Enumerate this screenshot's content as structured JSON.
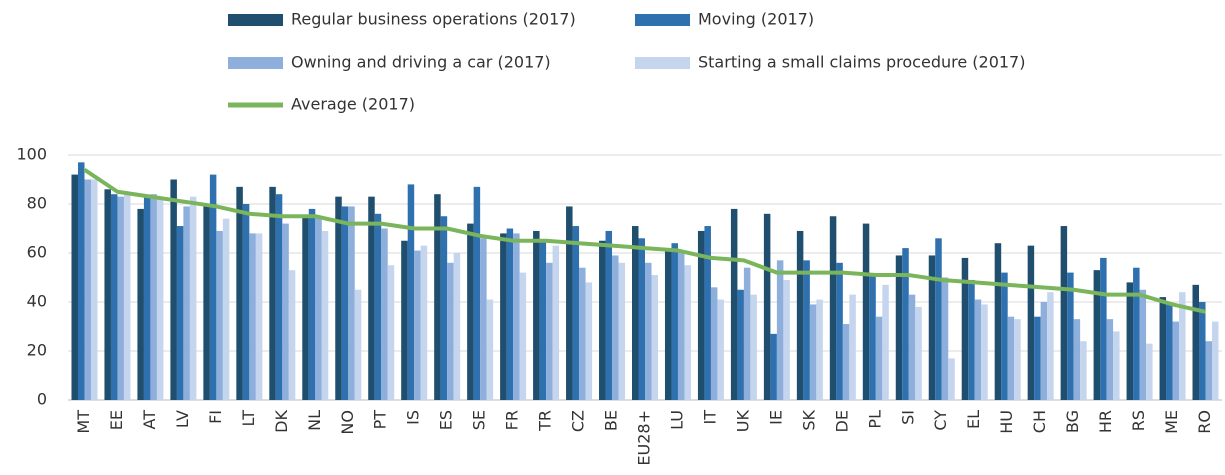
{
  "chart_data": {
    "type": "bar",
    "categories": [
      "MT",
      "EE",
      "AT",
      "LV",
      "FI",
      "LT",
      "DK",
      "NL",
      "NO",
      "PT",
      "IS",
      "ES",
      "SE",
      "FR",
      "TR",
      "CZ",
      "BE",
      "EU28+",
      "LU",
      "IT",
      "UK",
      "IE",
      "SK",
      "DE",
      "PL",
      "SI",
      "CY",
      "EL",
      "HU",
      "CH",
      "BG",
      "HR",
      "RS",
      "ME",
      "RO"
    ],
    "series": [
      {
        "name": "Regular business operations (2017)",
        "color": "#1f4e6e",
        "values": [
          92,
          86,
          78,
          90,
          80,
          87,
          87,
          75,
          83,
          83,
          65,
          84,
          72,
          68,
          69,
          79,
          65,
          71,
          62,
          69,
          78,
          76,
          69,
          75,
          72,
          59,
          59,
          58,
          64,
          63,
          71,
          53,
          48,
          42,
          47
        ]
      },
      {
        "name": "Moving (2017)",
        "color": "#2f70ae",
        "values": [
          97,
          84,
          83,
          71,
          92,
          80,
          84,
          78,
          79,
          76,
          88,
          75,
          87,
          70,
          65,
          71,
          69,
          66,
          64,
          71,
          45,
          27,
          57,
          56,
          51,
          62,
          66,
          49,
          52,
          34,
          52,
          58,
          54,
          39,
          40
        ]
      },
      {
        "name": "Owning and driving a car (2017)",
        "color": "#8eafdb",
        "values": [
          90,
          83,
          84,
          79,
          69,
          68,
          72,
          75,
          79,
          70,
          61,
          56,
          66,
          68,
          56,
          54,
          59,
          56,
          61,
          46,
          54,
          57,
          39,
          31,
          34,
          43,
          50,
          41,
          34,
          40,
          33,
          33,
          45,
          32,
          24
        ]
      },
      {
        "name": "Starting a small claims procedure (2017)",
        "color": "#c6d5ee",
        "values": [
          90,
          84,
          82,
          83,
          74,
          68,
          53,
          69,
          45,
          55,
          63,
          60,
          41,
          52,
          63,
          48,
          56,
          51,
          55,
          41,
          43,
          49,
          41,
          43,
          47,
          38,
          17,
          39,
          33,
          44,
          24,
          28,
          23,
          44,
          32
        ]
      },
      {
        "name": "Average (2017)",
        "color": "#7ab55c",
        "type": "line",
        "values": [
          94,
          85,
          83,
          81,
          79,
          76,
          75,
          75,
          72,
          72,
          70,
          70,
          67,
          65,
          65,
          64,
          63,
          62,
          61,
          58,
          57,
          52,
          52,
          52,
          51,
          51,
          49,
          48,
          47,
          46,
          45,
          43,
          43,
          39,
          36
        ]
      }
    ],
    "ylim": [
      0,
      100
    ],
    "yticks": [
      0,
      20,
      40,
      60,
      80,
      100
    ],
    "grid": true
  }
}
